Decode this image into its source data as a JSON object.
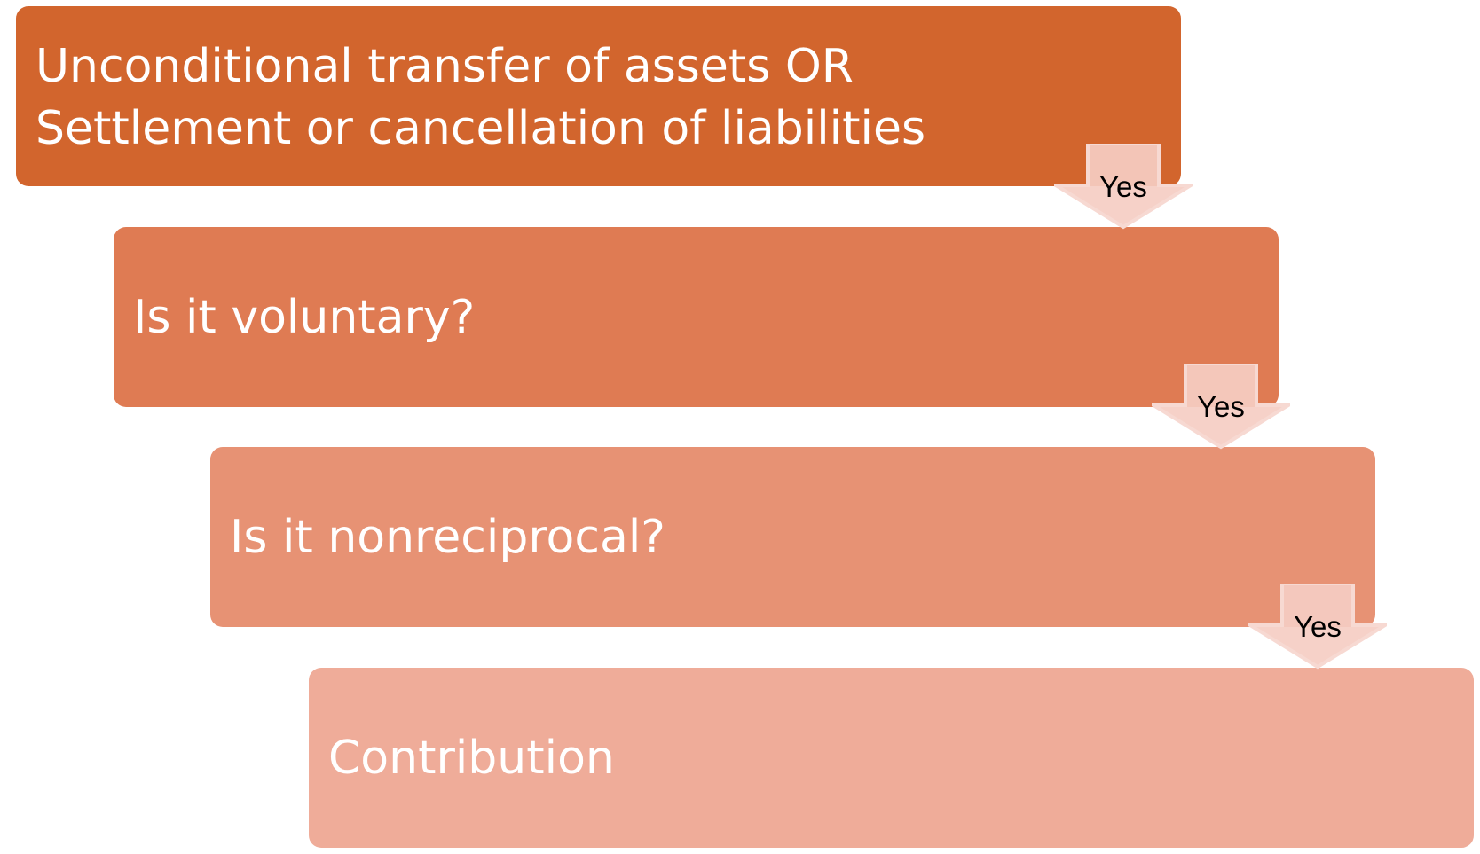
{
  "steps": [
    {
      "line1": "Unconditional transfer of assets OR",
      "line2": "Settlement or cancellation of liabilities"
    },
    {
      "label": "Is it voluntary?"
    },
    {
      "label": "Is it nonreciprocal?"
    },
    {
      "label": "Contribution"
    }
  ],
  "arrows": [
    {
      "label": "Yes"
    },
    {
      "label": "Yes"
    },
    {
      "label": "Yes"
    }
  ],
  "colors": {
    "step1": "#D2652D",
    "step2": "#DF7B53",
    "step3": "#E79274",
    "step4": "#EFAC99",
    "arrow": "#F5CDC3"
  }
}
